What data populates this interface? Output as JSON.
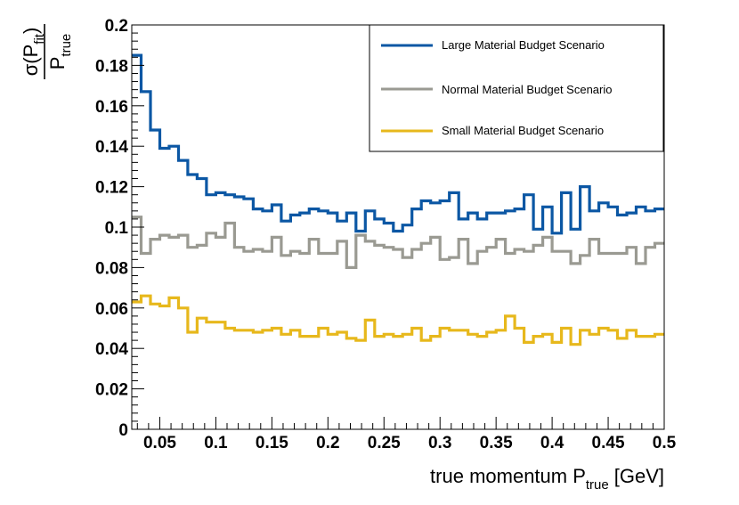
{
  "chart_data": {
    "type": "line",
    "step": true,
    "title": "",
    "xlabel": "true momentum P_true [GeV]",
    "xlabel_main": "true momentum P",
    "xlabel_sub": "true",
    "xlabel_unit": "[GeV]",
    "ylabel": "σ(P_fit) / P_true",
    "ylabel_num_main": "σ(P",
    "ylabel_num_sub": "fit",
    "ylabel_num_close": ")",
    "ylabel_den_main": "P",
    "ylabel_den_sub": "true",
    "xlim": [
      0.025,
      0.5
    ],
    "ylim": [
      0,
      0.2
    ],
    "bin_edges_start": 0.025,
    "bin_width": 0.0095,
    "grid": false,
    "legend_position": "top-right",
    "x_ticks": [
      0.05,
      0.1,
      0.15,
      0.2,
      0.25,
      0.3,
      0.35,
      0.4,
      0.45,
      0.5
    ],
    "x_tick_labels": [
      "0.05",
      "0.1",
      "0.15",
      "0.2",
      "0.25",
      "0.3",
      "0.35",
      "0.4",
      "0.45",
      "0.5"
    ],
    "y_ticks": [
      0,
      0.02,
      0.04,
      0.06,
      0.08,
      0.1,
      0.12,
      0.14,
      0.16,
      0.18,
      0.2
    ],
    "y_tick_labels": [
      "0",
      "0.02",
      "0.04",
      "0.06",
      "0.08",
      "0.1",
      "0.12",
      "0.14",
      "0.16",
      "0.18",
      "0.2"
    ],
    "series": [
      {
        "name": "Large Material Budget Scenario",
        "color": "#0b57a4",
        "values": [
          0.185,
          0.167,
          0.148,
          0.139,
          0.14,
          0.133,
          0.126,
          0.124,
          0.116,
          0.117,
          0.116,
          0.115,
          0.114,
          0.109,
          0.108,
          0.111,
          0.103,
          0.106,
          0.107,
          0.109,
          0.108,
          0.107,
          0.103,
          0.107,
          0.098,
          0.108,
          0.104,
          0.102,
          0.098,
          0.101,
          0.109,
          0.113,
          0.112,
          0.113,
          0.117,
          0.104,
          0.107,
          0.104,
          0.107,
          0.107,
          0.108,
          0.109,
          0.116,
          0.099,
          0.11,
          0.097,
          0.117,
          0.099,
          0.12,
          0.108,
          0.112,
          0.11,
          0.106,
          0.107,
          0.11,
          0.108,
          0.109
        ]
      },
      {
        "name": "Normal Material Budget Scenario",
        "color": "#9a9a92",
        "values": [
          0.105,
          0.087,
          0.094,
          0.096,
          0.095,
          0.096,
          0.09,
          0.091,
          0.097,
          0.095,
          0.102,
          0.09,
          0.088,
          0.089,
          0.088,
          0.095,
          0.086,
          0.088,
          0.087,
          0.094,
          0.087,
          0.087,
          0.093,
          0.08,
          0.096,
          0.093,
          0.091,
          0.09,
          0.089,
          0.085,
          0.089,
          0.092,
          0.095,
          0.084,
          0.085,
          0.094,
          0.082,
          0.088,
          0.09,
          0.094,
          0.087,
          0.089,
          0.088,
          0.091,
          0.095,
          0.088,
          0.088,
          0.082,
          0.086,
          0.094,
          0.087,
          0.087,
          0.087,
          0.09,
          0.082,
          0.09,
          0.092
        ]
      },
      {
        "name": "Small Material Budget Scenario",
        "color": "#e7b81c",
        "values": [
          0.063,
          0.066,
          0.062,
          0.061,
          0.065,
          0.06,
          0.048,
          0.055,
          0.053,
          0.053,
          0.05,
          0.049,
          0.049,
          0.048,
          0.049,
          0.05,
          0.047,
          0.049,
          0.046,
          0.046,
          0.05,
          0.047,
          0.048,
          0.045,
          0.044,
          0.054,
          0.046,
          0.047,
          0.046,
          0.047,
          0.05,
          0.044,
          0.046,
          0.05,
          0.049,
          0.049,
          0.047,
          0.046,
          0.048,
          0.049,
          0.056,
          0.05,
          0.043,
          0.046,
          0.047,
          0.043,
          0.05,
          0.042,
          0.049,
          0.047,
          0.05,
          0.049,
          0.045,
          0.049,
          0.046,
          0.046,
          0.047
        ]
      }
    ]
  }
}
